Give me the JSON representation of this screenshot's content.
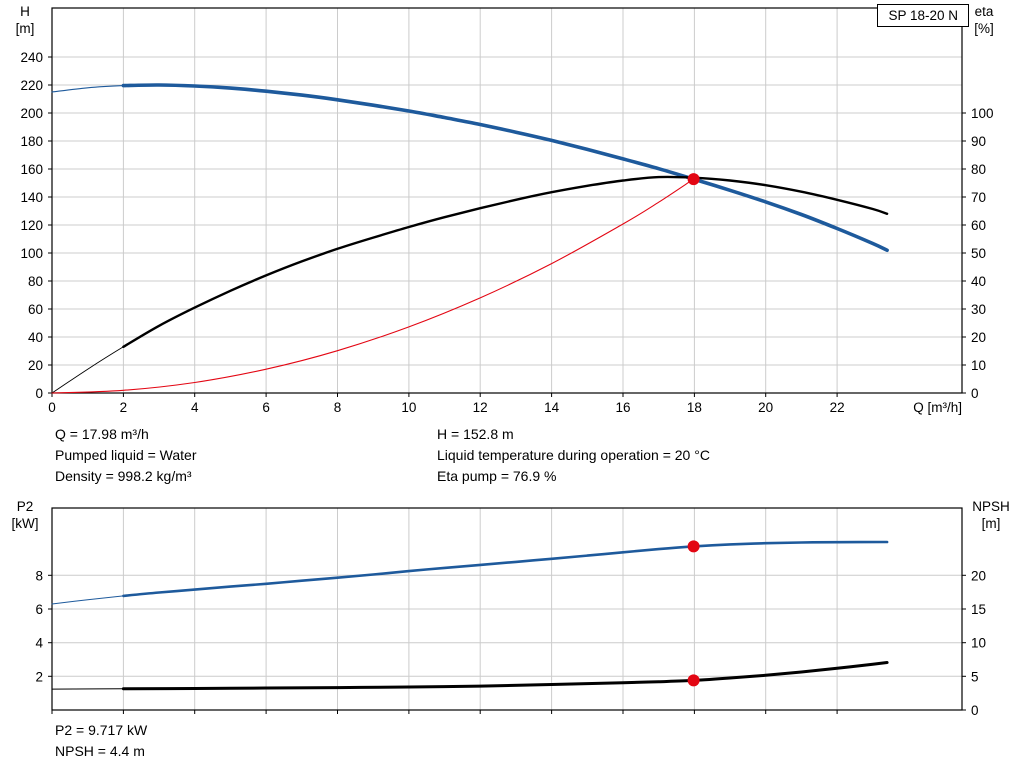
{
  "pump_model": "SP 18-20 N",
  "style": {
    "grid_color": "#cccccc",
    "frame_color": "#000000",
    "curve_blue": "#1e5a9c",
    "curve_black": "#000000",
    "accent_red": "#e30613"
  },
  "chart_data": [
    {
      "type": "line",
      "id": "qh_eta",
      "title": "SP 18-20 N",
      "grid": true,
      "x": {
        "label": "Q [m³/h]",
        "min": 0,
        "max": 25.5,
        "ticks": [
          0,
          2,
          4,
          6,
          8,
          10,
          12,
          14,
          16,
          18,
          20,
          22
        ],
        "tick_labels_visible": true
      },
      "y_left": {
        "label": "H",
        "unit": "[m]",
        "min": 0,
        "max": 275,
        "ticks": [
          0,
          20,
          40,
          60,
          80,
          100,
          120,
          140,
          160,
          180,
          200,
          220,
          240
        ]
      },
      "y_right": {
        "label": "eta",
        "unit": "[%]",
        "min": 0,
        "max": 137.5,
        "ticks": [
          0,
          10,
          20,
          30,
          40,
          50,
          60,
          70,
          80,
          90,
          100
        ]
      },
      "series": [
        {
          "name": "head-curve",
          "axis": "left",
          "color": "#1e5a9c",
          "width": 3.6,
          "thin_width": 1.1,
          "thin_until": 1.8,
          "points": [
            [
              0,
              215
            ],
            [
              1,
              218
            ],
            [
              2,
              219.6
            ],
            [
              3,
              220
            ],
            [
              4,
              219.3
            ],
            [
              5,
              217.8
            ],
            [
              6,
              215.6
            ],
            [
              7,
              212.8
            ],
            [
              8,
              209.4
            ],
            [
              9,
              205.6
            ],
            [
              10,
              201.4
            ],
            [
              11,
              196.8
            ],
            [
              12,
              191.8
            ],
            [
              13,
              186.3
            ],
            [
              14,
              180.4
            ],
            [
              15,
              174
            ],
            [
              16,
              167.2
            ],
            [
              17,
              160.2
            ],
            [
              17.98,
              152.8
            ],
            [
              19,
              144.8
            ],
            [
              20,
              136.5
            ],
            [
              21,
              127.5
            ],
            [
              22,
              117.5
            ],
            [
              23,
              106.8
            ],
            [
              23.4,
              102
            ]
          ]
        },
        {
          "name": "eta-curve",
          "axis": "right",
          "color": "#000000",
          "width": 2.4,
          "thin_width": 0.9,
          "thin_until": 1.8,
          "points": [
            [
              0,
              0
            ],
            [
              1,
              8.5
            ],
            [
              2,
              16.5
            ],
            [
              3,
              24
            ],
            [
              4,
              30.5
            ],
            [
              5,
              36.5
            ],
            [
              6,
              42
            ],
            [
              7,
              47
            ],
            [
              8,
              51.5
            ],
            [
              9,
              55.5
            ],
            [
              10,
              59.3
            ],
            [
              11,
              62.8
            ],
            [
              12,
              66
            ],
            [
              13,
              69
            ],
            [
              14,
              71.7
            ],
            [
              15,
              74
            ],
            [
              16,
              75.9
            ],
            [
              17,
              77.1
            ],
            [
              17.98,
              76.9
            ],
            [
              19,
              75.9
            ],
            [
              20,
              74.2
            ],
            [
              21,
              71.9
            ],
            [
              22,
              69
            ],
            [
              23,
              65.7
            ],
            [
              23.4,
              64
            ]
          ]
        },
        {
          "name": "duty-curve",
          "axis": "left",
          "color": "#e30613",
          "width": 1.1,
          "thin_width": null,
          "thin_until": null,
          "points": [
            [
              0,
              0
            ],
            [
              2,
              1.9
            ],
            [
              4,
              7.5
            ],
            [
              6,
              17
            ],
            [
              8,
              30.2
            ],
            [
              10,
              47.2
            ],
            [
              12,
              67.9
            ],
            [
              14,
              92.4
            ],
            [
              16,
              120.7
            ],
            [
              17,
              136.3
            ],
            [
              17.98,
              152.8
            ]
          ]
        }
      ],
      "markers": [
        {
          "name": "duty-point-head",
          "axis": "left",
          "q": 17.98,
          "value": 152.8,
          "color": "#e30613",
          "radius": 6
        }
      ]
    },
    {
      "type": "line",
      "id": "p2_npsh",
      "title": "",
      "grid": true,
      "x": {
        "label": "",
        "min": 0,
        "max": 25.5,
        "ticks": [
          0,
          2,
          4,
          6,
          8,
          10,
          12,
          14,
          16,
          18,
          20,
          22
        ],
        "tick_labels_visible": false
      },
      "y_left": {
        "label": "P2",
        "unit": "[kW]",
        "min": 0,
        "max": 12,
        "ticks": [
          2,
          4,
          6,
          8
        ]
      },
      "y_right": {
        "label": "NPSH",
        "unit": "[m]",
        "min": 0,
        "max": 30,
        "ticks": [
          0,
          5,
          10,
          15,
          20
        ]
      },
      "series": [
        {
          "name": "p2-curve",
          "axis": "left",
          "color": "#1e5a9c",
          "width": 2.6,
          "thin_width": 1,
          "thin_until": 1.8,
          "points": [
            [
              0,
              6.3
            ],
            [
              1,
              6.55
            ],
            [
              2,
              6.78
            ],
            [
              3,
              6.98
            ],
            [
              4,
              7.15
            ],
            [
              5,
              7.33
            ],
            [
              6,
              7.5
            ],
            [
              7,
              7.68
            ],
            [
              8,
              7.86
            ],
            [
              9,
              8.05
            ],
            [
              10,
              8.25
            ],
            [
              11,
              8.44
            ],
            [
              12,
              8.62
            ],
            [
              13,
              8.8
            ],
            [
              14,
              8.98
            ],
            [
              15,
              9.17
            ],
            [
              16,
              9.37
            ],
            [
              17,
              9.56
            ],
            [
              17.98,
              9.717
            ],
            [
              19,
              9.84
            ],
            [
              20,
              9.91
            ],
            [
              21,
              9.95
            ],
            [
              22,
              9.97
            ],
            [
              23.4,
              9.98
            ]
          ]
        },
        {
          "name": "npsh-curve",
          "axis": "right",
          "color": "#000000",
          "width": 3,
          "thin_width": 1,
          "thin_until": 1.8,
          "points": [
            [
              0,
              3.1
            ],
            [
              2,
              3.15
            ],
            [
              4,
              3.2
            ],
            [
              6,
              3.26
            ],
            [
              8,
              3.33
            ],
            [
              10,
              3.42
            ],
            [
              12,
              3.55
            ],
            [
              14,
              3.78
            ],
            [
              16,
              4.05
            ],
            [
              17,
              4.2
            ],
            [
              17.98,
              4.4
            ],
            [
              19,
              4.75
            ],
            [
              20,
              5.15
            ],
            [
              21,
              5.65
            ],
            [
              22,
              6.2
            ],
            [
              23,
              6.8
            ],
            [
              23.4,
              7.05
            ]
          ]
        }
      ],
      "markers": [
        {
          "name": "duty-point-p2",
          "axis": "left",
          "q": 17.98,
          "value": 9.717,
          "color": "#e30613",
          "radius": 6
        },
        {
          "name": "duty-point-npsh",
          "axis": "right",
          "q": 17.98,
          "value": 4.4,
          "color": "#e30613",
          "radius": 6
        }
      ]
    }
  ],
  "info_top": {
    "col1": [
      "Q = 17.98 m³/h",
      "Pumped liquid = Water",
      "Density = 998.2 kg/m³"
    ],
    "col2": [
      "H = 152.8 m",
      "Liquid temperature during operation = 20 °C",
      "Eta pump = 76.9 %"
    ]
  },
  "info_bottom": [
    "P2 = 9.717 kW",
    "NPSH = 4.4 m"
  ]
}
